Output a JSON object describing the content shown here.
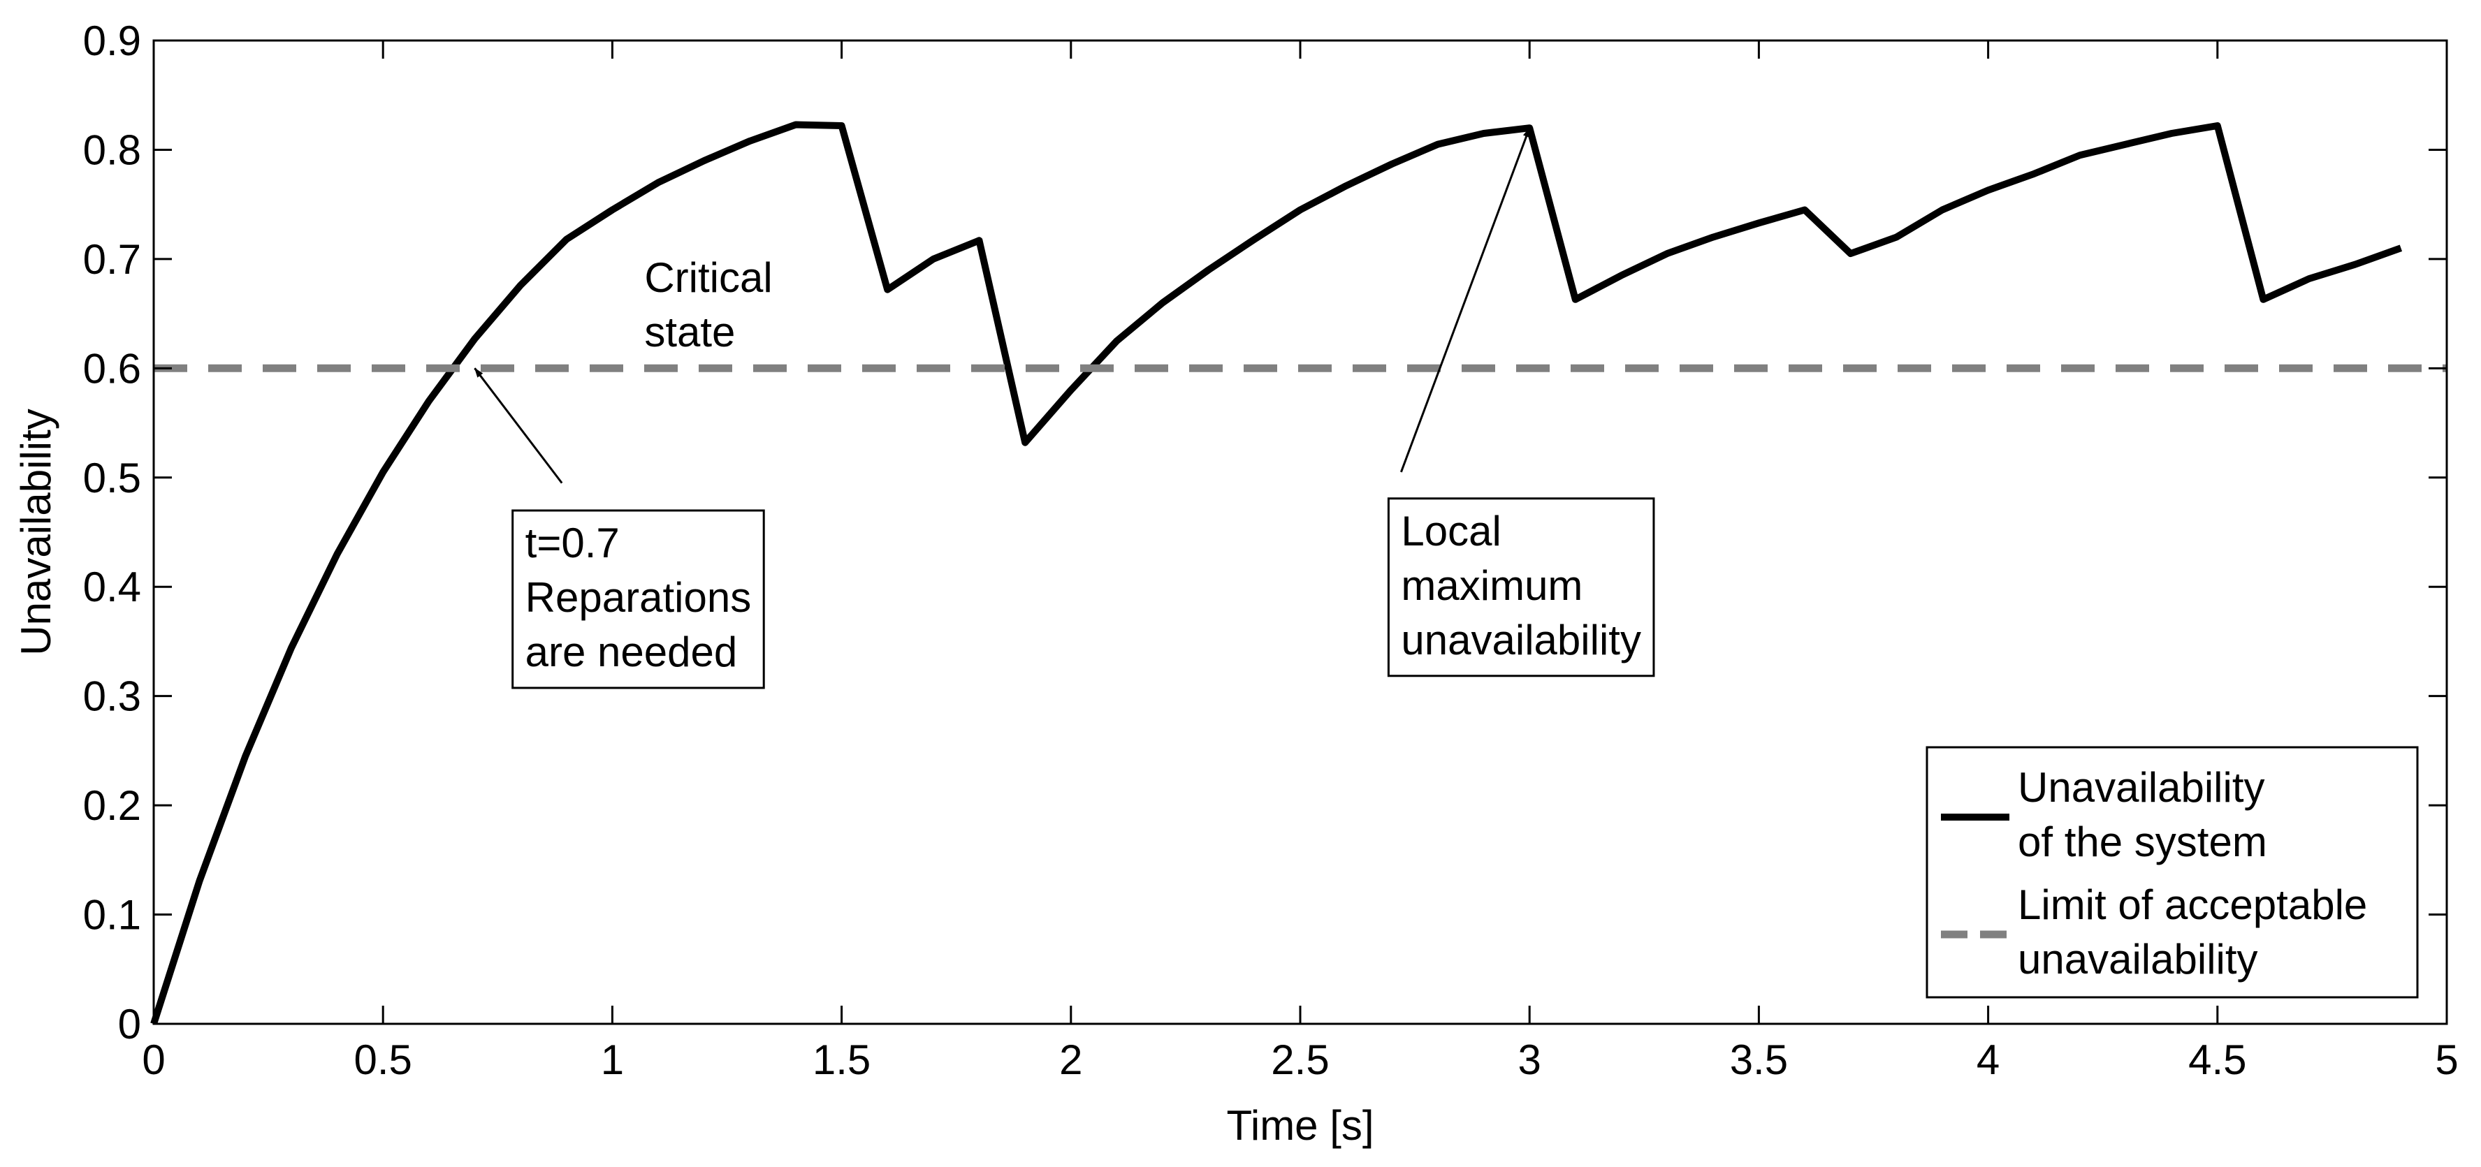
{
  "chart_data": {
    "type": "line",
    "title": "",
    "xlabel": "Time [s]",
    "ylabel": "Unavailability",
    "xlim": [
      0,
      5
    ],
    "ylim": [
      0,
      0.9
    ],
    "grid": false,
    "x_ticks": [
      0,
      0.5,
      1,
      1.5,
      2,
      2.5,
      3,
      3.5,
      4,
      4.5,
      5
    ],
    "x_tick_labels": [
      "0",
      "0.5",
      "1",
      "1.5",
      "2",
      "2.5",
      "3",
      "3.5",
      "4",
      "4.5",
      "5"
    ],
    "y_ticks": [
      0,
      0.1,
      0.2,
      0.3,
      0.4,
      0.5,
      0.6,
      0.7,
      0.8,
      0.9
    ],
    "y_tick_labels": [
      "0",
      "0.1",
      "0.2",
      "0.3",
      "0.4",
      "0.5",
      "0.6",
      "0.7",
      "0.8",
      "0.9"
    ],
    "series": [
      {
        "name": "Unavailability of the system",
        "legend_lines": [
          "Unavailability",
          "of the system"
        ],
        "color": "#000000",
        "style": "solid",
        "x": [
          0,
          0.1,
          0.2,
          0.3,
          0.4,
          0.5,
          0.6,
          0.7,
          0.8,
          0.9,
          1.0,
          1.1,
          1.2,
          1.3,
          1.4,
          1.5,
          1.6,
          1.7,
          1.8,
          1.9,
          2.0,
          2.1,
          2.2,
          2.3,
          2.4,
          2.5,
          2.6,
          2.7,
          2.8,
          2.9,
          3.0,
          3.1,
          3.2,
          3.3,
          3.4,
          3.5,
          3.6,
          3.7,
          3.8,
          3.9,
          4.0,
          4.1,
          4.2,
          4.3,
          4.4,
          4.5,
          4.6,
          4.7,
          4.8,
          4.9
        ],
        "y": [
          0.0,
          0.131,
          0.245,
          0.344,
          0.43,
          0.505,
          0.57,
          0.627,
          0.676,
          0.718,
          0.745,
          0.77,
          0.79,
          0.808,
          0.823,
          0.822,
          0.672,
          0.7,
          0.717,
          0.532,
          0.58,
          0.625,
          0.66,
          0.69,
          0.718,
          0.745,
          0.767,
          0.787,
          0.805,
          0.815,
          0.82,
          0.663,
          0.685,
          0.705,
          0.72,
          0.733,
          0.745,
          0.705,
          0.72,
          0.745,
          0.763,
          0.778,
          0.795,
          0.805,
          0.815,
          0.822,
          0.663,
          0.682,
          0.695,
          0.71
        ]
      },
      {
        "name": "Limit of acceptable unavailability",
        "legend_lines": [
          "Limit of acceptable",
          " unavailability"
        ],
        "color": "#808080",
        "style": "dashed",
        "x": [
          0,
          5
        ],
        "y": [
          0.6,
          0.6
        ]
      }
    ],
    "annotations": [
      {
        "id": "critical",
        "lines": [
          "Critical",
          "state"
        ],
        "boxed": false,
        "x": 1.07,
        "y": 0.67
      },
      {
        "id": "repair",
        "lines": [
          "t=0.7",
          "Reparations",
          "are needed"
        ],
        "boxed": true,
        "x": 0.81,
        "y": 0.427,
        "arrow_from": [
          0.89,
          0.495
        ],
        "arrow_to": [
          0.7,
          0.6
        ]
      },
      {
        "id": "localmax",
        "lines": [
          "Local",
          "maximum",
          "unavailability"
        ],
        "boxed": true,
        "x": 2.72,
        "y": 0.438,
        "arrow_from": [
          2.72,
          0.505
        ],
        "arrow_to": [
          3.0,
          0.82
        ]
      }
    ],
    "legend_position": "bottom-right"
  }
}
